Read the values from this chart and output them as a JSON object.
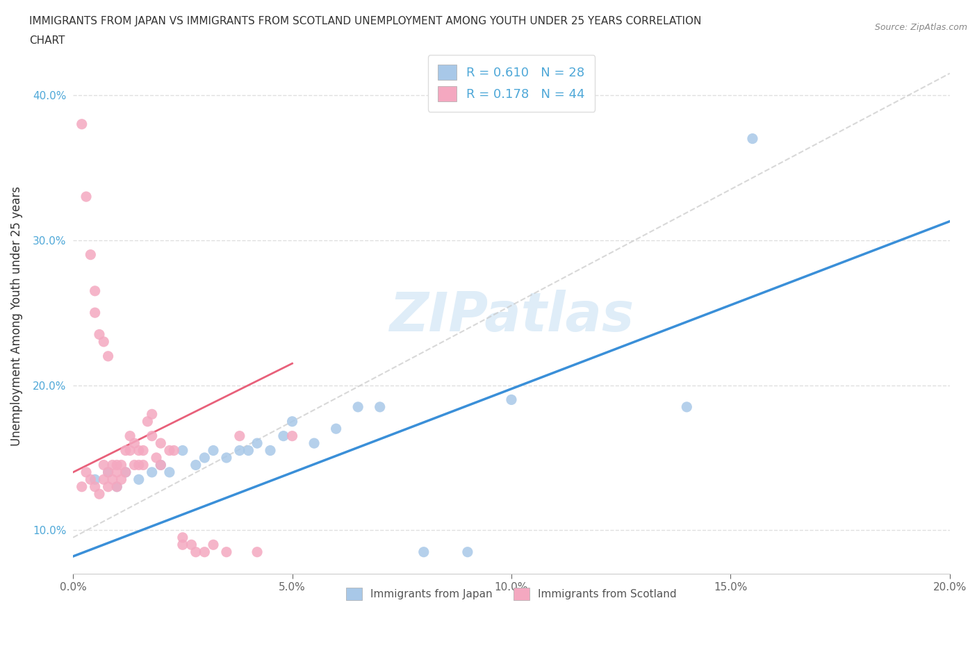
{
  "title_line1": "IMMIGRANTS FROM JAPAN VS IMMIGRANTS FROM SCOTLAND UNEMPLOYMENT AMONG YOUTH UNDER 25 YEARS CORRELATION",
  "title_line2": "CHART",
  "source": "Source: ZipAtlas.com",
  "ylabel": "Unemployment Among Youth under 25 years",
  "xlabel": "",
  "xlim": [
    0.0,
    0.2
  ],
  "ylim": [
    0.07,
    0.425
  ],
  "xticks": [
    0.0,
    0.05,
    0.1,
    0.15,
    0.2
  ],
  "xticklabels": [
    "0.0%",
    "5.0%",
    "10.0%",
    "15.0%",
    "20.0%"
  ],
  "yticks": [
    0.1,
    0.2,
    0.3,
    0.4
  ],
  "yticklabels": [
    "10.0%",
    "20.0%",
    "30.0%",
    "40.0%"
  ],
  "japan_color": "#a8c8e8",
  "scotland_color": "#f4a8c0",
  "japan_line_color": "#3a8fd8",
  "scotland_line_color": "#e8607a",
  "ref_line_color": "#c8c8c8",
  "R_japan": 0.61,
  "N_japan": 28,
  "R_scotland": 0.178,
  "N_scotland": 44,
  "japan_x": [
    0.005,
    0.008,
    0.01,
    0.012,
    0.015,
    0.018,
    0.02,
    0.022,
    0.025,
    0.028,
    0.03,
    0.032,
    0.035,
    0.038,
    0.04,
    0.042,
    0.045,
    0.048,
    0.05,
    0.055,
    0.06,
    0.065,
    0.07,
    0.08,
    0.09,
    0.1,
    0.14,
    0.155
  ],
  "japan_y": [
    0.135,
    0.14,
    0.13,
    0.14,
    0.135,
    0.14,
    0.145,
    0.14,
    0.155,
    0.145,
    0.15,
    0.155,
    0.15,
    0.155,
    0.155,
    0.16,
    0.155,
    0.165,
    0.175,
    0.16,
    0.17,
    0.185,
    0.185,
    0.085,
    0.085,
    0.19,
    0.185,
    0.37
  ],
  "scotland_x": [
    0.002,
    0.003,
    0.004,
    0.005,
    0.006,
    0.007,
    0.007,
    0.008,
    0.008,
    0.009,
    0.009,
    0.01,
    0.01,
    0.01,
    0.011,
    0.011,
    0.012,
    0.012,
    0.013,
    0.013,
    0.014,
    0.014,
    0.015,
    0.015,
    0.016,
    0.016,
    0.017,
    0.018,
    0.018,
    0.019,
    0.02,
    0.02,
    0.022,
    0.023,
    0.025,
    0.025,
    0.027,
    0.028,
    0.03,
    0.032,
    0.035,
    0.038,
    0.042,
    0.05
  ],
  "scotland_y": [
    0.13,
    0.14,
    0.135,
    0.13,
    0.125,
    0.135,
    0.145,
    0.13,
    0.14,
    0.135,
    0.145,
    0.13,
    0.14,
    0.145,
    0.135,
    0.145,
    0.14,
    0.155,
    0.155,
    0.165,
    0.145,
    0.16,
    0.145,
    0.155,
    0.145,
    0.155,
    0.175,
    0.165,
    0.18,
    0.15,
    0.145,
    0.16,
    0.155,
    0.155,
    0.095,
    0.09,
    0.09,
    0.085,
    0.085,
    0.09,
    0.085,
    0.165,
    0.085,
    0.165
  ],
  "scotland_extra_y": [
    0.38,
    0.33,
    0.29,
    0.265,
    0.25,
    0.235,
    0.23,
    0.22
  ],
  "scotland_extra_x": [
    0.002,
    0.003,
    0.004,
    0.005,
    0.005,
    0.006,
    0.007,
    0.008
  ],
  "watermark": "ZIPatlas",
  "legend_japan_label": "Immigrants from Japan",
  "legend_scotland_label": "Immigrants from Scotland",
  "background_color": "#ffffff",
  "grid_color": "#e0e0e0",
  "japan_line_x0": 0.0,
  "japan_line_y0": 0.082,
  "japan_line_x1": 0.2,
  "japan_line_y1": 0.313,
  "scotland_line_x0": 0.0,
  "scotland_line_y0": 0.14,
  "scotland_line_x1": 0.05,
  "scotland_line_y1": 0.215,
  "ref_line_x0": 0.0,
  "ref_line_y0": 0.095,
  "ref_line_x1": 0.2,
  "ref_line_y1": 0.415
}
